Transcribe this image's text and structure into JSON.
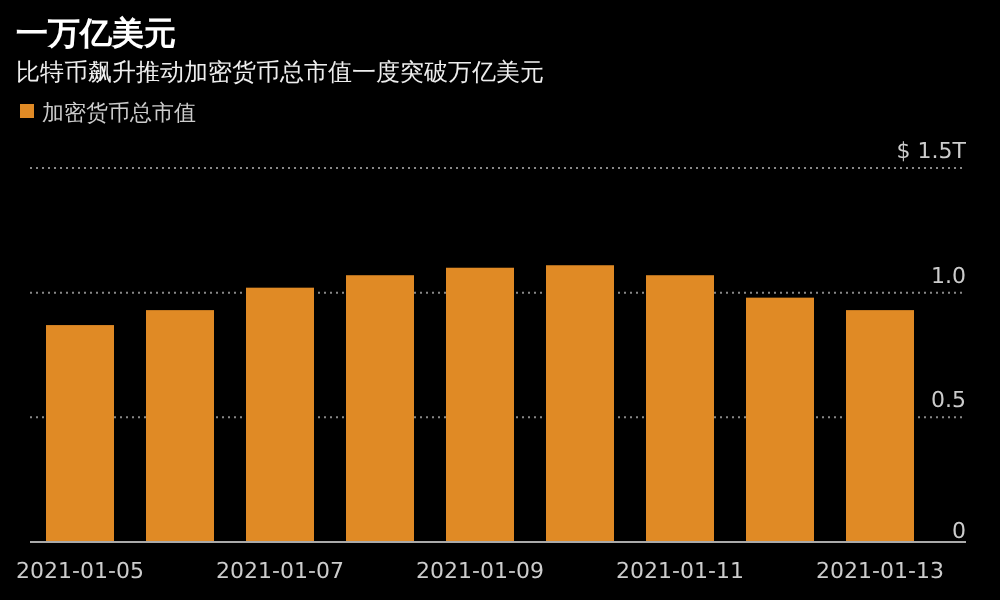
{
  "chart_data": {
    "type": "bar",
    "title": "一万亿美元",
    "subtitle": "比特币飙升推动加密货币总市值一度突破万亿美元",
    "categories": [
      "2021-01-05",
      null,
      "2021-01-07",
      null,
      "2021-01-09",
      null,
      "2021-01-11",
      null,
      "2021-01-13"
    ],
    "series": [
      {
        "name": "加密货币总市值",
        "color": "#e08a25",
        "values": [
          0.87,
          0.93,
          1.02,
          1.07,
          1.1,
          1.11,
          1.07,
          0.98,
          0.93
        ]
      }
    ],
    "ylim": [
      0,
      1.5
    ],
    "yticks": [
      {
        "value": 0,
        "label": "0"
      },
      {
        "value": 0.5,
        "label": "0.5"
      },
      {
        "value": 1,
        "label": "1.0"
      },
      {
        "value": 1.5,
        "label": "$ 1.5T"
      }
    ],
    "grid": "y",
    "legend": "top left"
  }
}
